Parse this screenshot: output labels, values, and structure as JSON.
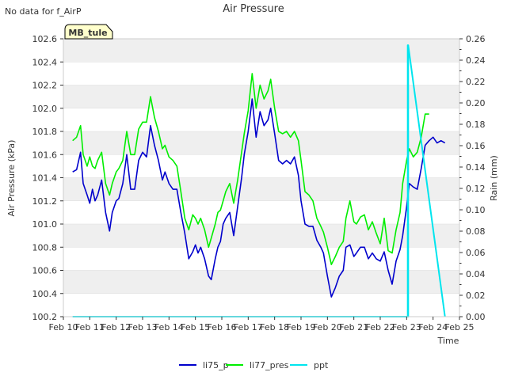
{
  "colors": {
    "li75_p": "#0000cc",
    "li77_pres": "#00ee00",
    "ppt": "#00e5ee",
    "band": "#efefef",
    "grid": "#dcdcdc",
    "badge_fill": "#ffffcc",
    "badge_text": "#8b0000"
  },
  "chart_data": {
    "type": "line",
    "title": "Air Pressure",
    "no_data_note": "No data for f_AirP",
    "badge": "MB_tule",
    "xlabel": "Time",
    "ylabel_left": "Air Pressure (kPa)",
    "ylabel_right": "Rain (mm)",
    "xlim": [
      10,
      25
    ],
    "ylim_left": [
      100.2,
      102.6
    ],
    "ylim_right": [
      0.0,
      0.26
    ],
    "x_ticks": [
      10,
      11,
      12,
      13,
      14,
      15,
      16,
      17,
      18,
      19,
      20,
      21,
      22,
      23,
      24,
      25
    ],
    "x_tick_labels": [
      "Feb 10",
      "Feb 11",
      "Feb 12",
      "Feb 13",
      "Feb 14",
      "Feb 15",
      "Feb 16",
      "Feb 17",
      "Feb 18",
      "Feb 19",
      "Feb 20",
      "Feb 21",
      "Feb 22",
      "Feb 23",
      "Feb 24",
      "Feb 25"
    ],
    "y_left_ticks": [
      100.2,
      100.4,
      100.6,
      100.8,
      101.0,
      101.2,
      101.4,
      101.6,
      101.8,
      102.0,
      102.2,
      102.4,
      102.6
    ],
    "y_left_tick_labels": [
      "100.2",
      "100.4",
      "100.6",
      "100.8",
      "101.0",
      "101.2",
      "101.4",
      "101.6",
      "101.8",
      "102.0",
      "102.2",
      "102.4",
      "102.6"
    ],
    "y_right_ticks": [
      0.0,
      0.02,
      0.04,
      0.06,
      0.08,
      0.1,
      0.12,
      0.14,
      0.16,
      0.18,
      0.2,
      0.22,
      0.24,
      0.26
    ],
    "y_right_tick_labels": [
      "0.00",
      "0.02",
      "0.04",
      "0.06",
      "0.08",
      "0.10",
      "0.12",
      "0.14",
      "0.16",
      "0.18",
      "0.20",
      "0.22",
      "0.24",
      "0.26"
    ],
    "series": [
      {
        "name": "li75_p",
        "axis": "left",
        "x": [
          10.35,
          10.5,
          10.65,
          10.75,
          10.9,
          11.0,
          11.1,
          11.2,
          11.3,
          11.45,
          11.6,
          11.75,
          11.85,
          12.0,
          12.1,
          12.25,
          12.4,
          12.55,
          12.7,
          12.85,
          13.0,
          13.15,
          13.3,
          13.45,
          13.6,
          13.75,
          13.85,
          14.0,
          14.15,
          14.3,
          14.45,
          14.6,
          14.75,
          14.9,
          15.0,
          15.1,
          15.2,
          15.35,
          15.5,
          15.6,
          15.75,
          15.85,
          15.95,
          16.05,
          16.15,
          16.3,
          16.45,
          16.6,
          16.75,
          16.85,
          17.0,
          17.15,
          17.3,
          17.45,
          17.6,
          17.75,
          17.85,
          18.0,
          18.15,
          18.3,
          18.45,
          18.6,
          18.75,
          18.9,
          19.0,
          19.15,
          19.3,
          19.45,
          19.6,
          19.75,
          19.85,
          20.0,
          20.15,
          20.3,
          20.45,
          20.6,
          20.7,
          20.85,
          21.0,
          21.1,
          21.25,
          21.4,
          21.55,
          21.7,
          21.85,
          22.0,
          22.15,
          22.3,
          22.45,
          22.6,
          22.75,
          22.85,
          23.0,
          23.1,
          23.25,
          23.4,
          23.55,
          23.7,
          23.85,
          24.0,
          24.15,
          24.3,
          24.45
        ],
        "y": [
          101.45,
          101.47,
          101.62,
          101.35,
          101.25,
          101.18,
          101.3,
          101.2,
          101.25,
          101.38,
          101.1,
          100.94,
          101.1,
          101.2,
          101.22,
          101.35,
          101.6,
          101.3,
          101.3,
          101.55,
          101.62,
          101.58,
          101.85,
          101.68,
          101.55,
          101.38,
          101.45,
          101.35,
          101.3,
          101.3,
          101.1,
          100.92,
          100.7,
          100.76,
          100.82,
          100.75,
          100.8,
          100.7,
          100.55,
          100.52,
          100.7,
          100.8,
          100.85,
          101.0,
          101.05,
          101.1,
          100.9,
          101.15,
          101.4,
          101.6,
          101.8,
          102.08,
          101.75,
          101.97,
          101.85,
          101.9,
          102.0,
          101.78,
          101.55,
          101.52,
          101.55,
          101.52,
          101.58,
          101.42,
          101.2,
          101.0,
          100.98,
          100.98,
          100.86,
          100.8,
          100.75,
          100.55,
          100.37,
          100.45,
          100.55,
          100.6,
          100.8,
          100.82,
          100.72,
          100.75,
          100.8,
          100.8,
          100.7,
          100.75,
          100.7,
          100.68,
          100.76,
          100.6,
          100.48,
          100.68,
          100.78,
          100.9,
          101.15,
          101.35,
          101.32,
          101.3,
          101.48,
          101.68,
          101.72,
          101.75,
          101.7,
          101.72,
          101.7
        ],
        "ppt_x": [],
        "ppt_y": []
      },
      {
        "name": "li77_pres",
        "axis": "left",
        "x": [
          10.35,
          10.5,
          10.65,
          10.75,
          10.9,
          11.0,
          11.1,
          11.2,
          11.3,
          11.45,
          11.6,
          11.75,
          11.85,
          12.0,
          12.1,
          12.25,
          12.4,
          12.55,
          12.7,
          12.85,
          13.0,
          13.15,
          13.3,
          13.45,
          13.6,
          13.75,
          13.85,
          14.0,
          14.15,
          14.3,
          14.45,
          14.6,
          14.75,
          14.9,
          15.0,
          15.1,
          15.2,
          15.35,
          15.5,
          15.6,
          15.75,
          15.85,
          15.95,
          16.05,
          16.15,
          16.3,
          16.45,
          16.6,
          16.75,
          16.85,
          17.0,
          17.15,
          17.3,
          17.45,
          17.6,
          17.75,
          17.85,
          18.0,
          18.15,
          18.3,
          18.45,
          18.6,
          18.75,
          18.9,
          19.0,
          19.15,
          19.3,
          19.45,
          19.6,
          19.75,
          19.85,
          20.0,
          20.15,
          20.3,
          20.45,
          20.6,
          20.7,
          20.85,
          21.0,
          21.1,
          21.25,
          21.4,
          21.55,
          21.7,
          21.85,
          22.0,
          22.15,
          22.3,
          22.45,
          22.6,
          22.75,
          22.85,
          23.0,
          23.1,
          23.25,
          23.4,
          23.55,
          23.7,
          23.85
        ],
        "y": [
          101.72,
          101.75,
          101.85,
          101.6,
          101.5,
          101.58,
          101.5,
          101.48,
          101.55,
          101.62,
          101.35,
          101.25,
          101.35,
          101.45,
          101.48,
          101.55,
          101.8,
          101.6,
          101.6,
          101.82,
          101.88,
          101.88,
          102.1,
          101.92,
          101.8,
          101.65,
          101.68,
          101.58,
          101.55,
          101.5,
          101.28,
          101.05,
          100.95,
          101.08,
          101.05,
          101.0,
          101.05,
          100.95,
          100.8,
          100.88,
          101.0,
          101.1,
          101.12,
          101.2,
          101.28,
          101.35,
          101.18,
          101.38,
          101.62,
          101.78,
          101.98,
          102.3,
          102.0,
          102.2,
          102.08,
          102.15,
          102.25,
          102.0,
          101.8,
          101.78,
          101.8,
          101.75,
          101.8,
          101.72,
          101.55,
          101.28,
          101.25,
          101.2,
          101.05,
          100.98,
          100.93,
          100.8,
          100.65,
          100.72,
          100.8,
          100.85,
          101.05,
          101.2,
          101.02,
          101.0,
          101.06,
          101.08,
          100.95,
          101.02,
          100.92,
          100.83,
          101.05,
          100.77,
          100.75,
          100.95,
          101.1,
          101.35,
          101.55,
          101.65,
          101.58,
          101.62,
          101.75,
          101.95,
          101.95
        ],
        "ppt_x": [],
        "ppt_y": []
      },
      {
        "name": "ppt",
        "axis": "right",
        "x": [
          10.35,
          23.04,
          23.04,
          23.04,
          23.06,
          23.06,
          24.45
        ],
        "y": [
          0.0,
          0.0,
          0.254,
          0.0,
          0.0,
          0.254,
          0.0
        ]
      }
    ],
    "legend": [
      "li75_p",
      "li77_pres",
      "ppt"
    ],
    "legend_position": "bottom-center",
    "grid": true
  }
}
